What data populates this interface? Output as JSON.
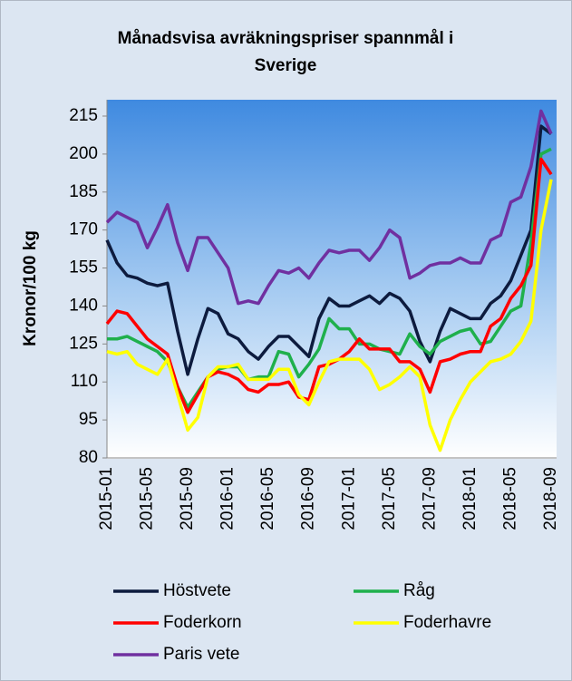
{
  "chart_data": {
    "type": "line",
    "title": "Månadsvisa avräkningspriser spannmål i Sverige",
    "y_label": "Kronor/100 kg",
    "categories": [
      "2015-01",
      null,
      null,
      null,
      "2015-05",
      null,
      null,
      null,
      "2015-09",
      null,
      null,
      null,
      "2016-01",
      null,
      null,
      null,
      "2016-05",
      null,
      null,
      null,
      "2016-09",
      null,
      null,
      null,
      "2017-01",
      null,
      null,
      null,
      "2017-05",
      null,
      null,
      null,
      "2017-09",
      null,
      null,
      null,
      "2018-01",
      null,
      null,
      null,
      "2018-05",
      null,
      null,
      null,
      "2018-09"
    ],
    "ylim": [
      80,
      215
    ],
    "yticks": [
      80,
      95,
      110,
      125,
      140,
      155,
      170,
      185,
      200,
      215
    ],
    "grid": false,
    "series": [
      {
        "name": "Höstvete",
        "color": "#0d1b3e",
        "values": [
          166,
          157,
          152,
          151,
          149,
          148,
          149,
          130,
          113,
          127,
          139,
          137,
          129,
          127,
          122,
          119,
          124,
          128,
          128,
          124,
          120,
          135,
          143,
          140,
          140,
          142,
          144,
          141,
          145,
          143,
          138,
          126,
          118,
          130,
          139,
          137,
          135,
          135,
          141,
          144,
          150,
          160,
          170,
          211,
          208
        ]
      },
      {
        "name": "Råg",
        "color": "#1fb04c",
        "values": [
          127,
          127,
          128,
          126,
          124,
          122,
          118,
          108,
          100,
          106,
          112,
          115,
          116,
          116,
          111,
          112,
          112,
          122,
          121,
          112,
          117,
          123,
          135,
          131,
          131,
          125,
          125,
          123,
          122,
          121,
          129,
          124,
          121,
          126,
          128,
          130,
          131,
          125,
          126,
          132,
          138,
          140,
          165,
          200,
          202
        ]
      },
      {
        "name": "Foderkorn",
        "color": "#ff0000",
        "values": [
          133,
          138,
          137,
          132,
          127,
          124,
          121,
          108,
          98,
          105,
          112,
          114,
          113,
          111,
          107,
          106,
          109,
          109,
          110,
          104,
          103,
          116,
          117,
          119,
          122,
          127,
          123,
          123,
          123,
          118,
          118,
          115,
          106,
          118,
          119,
          121,
          122,
          122,
          132,
          135,
          143,
          148,
          156,
          198,
          192
        ]
      },
      {
        "name": "Foderhavre",
        "color": "#ffff00",
        "values": [
          122,
          121,
          122,
          117,
          115,
          113,
          119,
          105,
          91,
          96,
          112,
          116,
          116,
          117,
          111,
          111,
          111,
          115,
          115,
          105,
          101,
          110,
          118,
          119,
          119,
          119,
          115,
          107,
          109,
          112,
          116,
          112,
          93,
          83,
          95,
          103,
          110,
          114,
          118,
          119,
          121,
          126,
          134,
          170,
          190
        ]
      },
      {
        "name": "Paris vete",
        "color": "#7030a0",
        "values": [
          173,
          177,
          175,
          173,
          163,
          171,
          180,
          165,
          154,
          167,
          167,
          161,
          155,
          141,
          142,
          141,
          148,
          154,
          153,
          155,
          151,
          157,
          162,
          161,
          162,
          162,
          158,
          163,
          170,
          167,
          151,
          153,
          156,
          157,
          157,
          159,
          157,
          157,
          166,
          168,
          181,
          183,
          195,
          217,
          208
        ]
      }
    ]
  }
}
